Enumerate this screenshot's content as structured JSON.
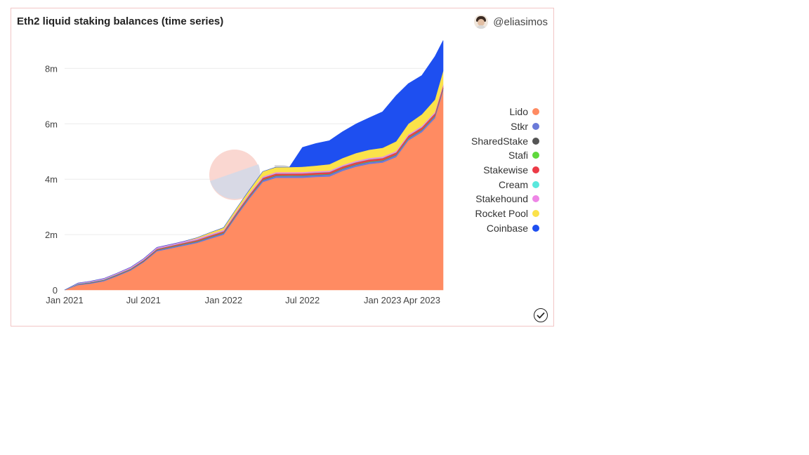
{
  "header": {
    "title": "Eth2 liquid staking balances (time series)",
    "author": "@eliasimos"
  },
  "watermark": {
    "text": "Dune"
  },
  "chart_data": {
    "type": "area",
    "stacked": true,
    "x": [
      "2021-01-01",
      "2021-02-01",
      "2021-03-01",
      "2021-04-01",
      "2021-05-01",
      "2021-06-01",
      "2021-07-01",
      "2021-08-01",
      "2021-09-01",
      "2021-10-01",
      "2021-11-01",
      "2021-12-01",
      "2022-01-01",
      "2022-02-01",
      "2022-03-01",
      "2022-04-01",
      "2022-05-01",
      "2022-06-01",
      "2022-07-01",
      "2022-08-01",
      "2022-09-01",
      "2022-10-01",
      "2022-11-01",
      "2022-12-01",
      "2023-01-01",
      "2023-02-01",
      "2023-03-01",
      "2023-04-01",
      "2023-05-01",
      "2023-05-20"
    ],
    "x_tick_labels": [
      "Jan 2021",
      "Jul 2021",
      "Jan 2022",
      "Jul 2022",
      "Jan 2023",
      "Apr 2023"
    ],
    "y_tick_labels": [
      "0",
      "2m",
      "4m",
      "6m",
      "8m"
    ],
    "ylim": [
      0,
      9100000
    ],
    "grid": true,
    "legend_position": "right",
    "series": [
      {
        "name": "Lido",
        "color": "#ff8b62",
        "values": [
          0,
          180000,
          230000,
          320000,
          500000,
          700000,
          1000000,
          1400000,
          1500000,
          1600000,
          1700000,
          1850000,
          2000000,
          2700000,
          3300000,
          3900000,
          4050000,
          4050000,
          4050000,
          4080000,
          4100000,
          4300000,
          4450000,
          4550000,
          4600000,
          4800000,
          5400000,
          5700000,
          6200000,
          7200000
        ]
      },
      {
        "name": "Stkr",
        "color": "#6b7ad9",
        "values": [
          0,
          25000,
          27000,
          29000,
          30000,
          32000,
          35000,
          38000,
          40000,
          42000,
          45000,
          48000,
          50000,
          55000,
          60000,
          65000,
          67000,
          68000,
          69000,
          70000,
          70000,
          70000,
          70000,
          70000,
          70000,
          70000,
          70000,
          70000,
          70000,
          70000
        ]
      },
      {
        "name": "SharedStake",
        "color": "#555555",
        "values": [
          0,
          8000,
          9000,
          9000,
          9000,
          9000,
          9000,
          9000,
          9000,
          9000,
          9000,
          9000,
          9000,
          9000,
          9000,
          9000,
          9000,
          9000,
          9000,
          9000,
          9000,
          9000,
          9000,
          9000,
          9000,
          9000,
          9000,
          9000,
          9000,
          9000
        ]
      },
      {
        "name": "Stafi",
        "color": "#5fd83c",
        "values": [
          0,
          3000,
          4000,
          5000,
          6000,
          7000,
          8000,
          9000,
          10000,
          11000,
          12000,
          12000,
          13000,
          13000,
          14000,
          14000,
          14000,
          14000,
          14000,
          14000,
          14000,
          14000,
          14000,
          14000,
          14000,
          14000,
          14000,
          14000,
          14000,
          14000
        ]
      },
      {
        "name": "Stakewise",
        "color": "#ec3b47",
        "values": [
          0,
          5000,
          8000,
          10000,
          15000,
          20000,
          25000,
          30000,
          35000,
          40000,
          42000,
          45000,
          47000,
          50000,
          55000,
          60000,
          62000,
          63000,
          65000,
          66000,
          67000,
          68000,
          69000,
          70000,
          71000,
          72000,
          75000,
          78000,
          80000,
          85000
        ]
      },
      {
        "name": "Cream",
        "color": "#5ae8dd",
        "values": [
          0,
          10000,
          12000,
          12000,
          12000,
          12000,
          12000,
          12000,
          12000,
          12000,
          12000,
          12000,
          12000,
          12000,
          12000,
          12000,
          12000,
          12000,
          12000,
          12000,
          12000,
          12000,
          12000,
          12000,
          12000,
          12000,
          12000,
          12000,
          12000,
          12000
        ]
      },
      {
        "name": "Stakehound",
        "color": "#ee86e6",
        "values": [
          0,
          20000,
          25000,
          30000,
          35000,
          38000,
          40000,
          40000,
          40000,
          40000,
          40000,
          40000,
          40000,
          40000,
          40000,
          40000,
          40000,
          40000,
          40000,
          40000,
          40000,
          40000,
          40000,
          40000,
          40000,
          40000,
          40000,
          40000,
          40000,
          40000
        ]
      },
      {
        "name": "Rocket Pool",
        "color": "#fbe24a",
        "values": [
          0,
          0,
          0,
          0,
          0,
          0,
          0,
          0,
          0,
          0,
          30000,
          60000,
          80000,
          100000,
          120000,
          180000,
          180000,
          180000,
          190000,
          200000,
          230000,
          250000,
          280000,
          300000,
          320000,
          350000,
          380000,
          420000,
          450000,
          480000
        ]
      },
      {
        "name": "Coinbase",
        "color": "#1e4ff0",
        "values": [
          0,
          0,
          0,
          0,
          0,
          0,
          0,
          0,
          0,
          0,
          0,
          0,
          0,
          0,
          0,
          0,
          0,
          0,
          700000,
          800000,
          850000,
          950000,
          1050000,
          1150000,
          1300000,
          1650000,
          1450000,
          1400000,
          1550000,
          1100000
        ]
      }
    ]
  }
}
